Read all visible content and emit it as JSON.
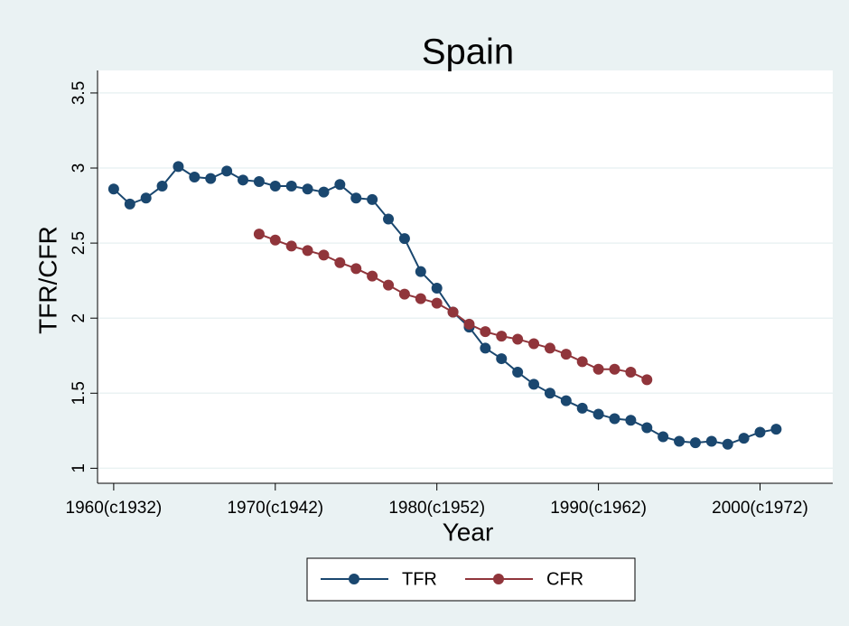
{
  "chart_data": {
    "type": "line",
    "title": "Spain",
    "x_label": "Year",
    "y_label": "TFR/CFR",
    "x": [
      1960,
      1961,
      1962,
      1963,
      1964,
      1965,
      1966,
      1967,
      1968,
      1969,
      1970,
      1971,
      1972,
      1973,
      1974,
      1975,
      1976,
      1977,
      1978,
      1979,
      1980,
      1981,
      1982,
      1983,
      1984,
      1985,
      1986,
      1987,
      1988,
      1989,
      1990,
      1991,
      1992,
      1993,
      1994,
      1995,
      1996,
      1997,
      1998,
      1999,
      2000,
      2001
    ],
    "series": [
      {
        "name": "TFR",
        "color": "#1a476f",
        "values": [
          2.86,
          2.76,
          2.8,
          2.88,
          3.01,
          2.94,
          2.93,
          2.98,
          2.92,
          2.91,
          2.88,
          2.88,
          2.86,
          2.84,
          2.89,
          2.8,
          2.79,
          2.66,
          2.53,
          2.31,
          2.2,
          2.04,
          1.94,
          1.8,
          1.73,
          1.64,
          1.56,
          1.5,
          1.45,
          1.4,
          1.36,
          1.33,
          1.32,
          1.27,
          1.21,
          1.18,
          1.17,
          1.18,
          1.16,
          1.2,
          1.24,
          1.26
        ]
      },
      {
        "name": "CFR",
        "color": "#90353b",
        "values": [
          null,
          null,
          null,
          null,
          null,
          null,
          null,
          null,
          null,
          2.56,
          2.52,
          2.48,
          2.45,
          2.42,
          2.37,
          2.33,
          2.28,
          2.22,
          2.16,
          2.13,
          2.1,
          2.04,
          1.96,
          1.91,
          1.88,
          1.86,
          1.83,
          1.8,
          1.76,
          1.71,
          1.66,
          1.66,
          1.64,
          1.59,
          null,
          null,
          null,
          null,
          null,
          null,
          null,
          null
        ]
      }
    ],
    "xlim": [
      1959,
      2004.5
    ],
    "xticks": [
      {
        "value": 1960,
        "label": "1960(c1932)"
      },
      {
        "value": 1970,
        "label": "1970(c1942)"
      },
      {
        "value": 1980,
        "label": "1980(c1952)"
      },
      {
        "value": 1990,
        "label": "1990(c1962)"
      },
      {
        "value": 2000,
        "label": "2000(c1972)"
      }
    ],
    "ylim": [
      0.9,
      3.65
    ],
    "yticks": [
      1,
      1.5,
      2,
      2.5,
      3,
      3.5
    ],
    "grid": true,
    "legend": "bottom"
  }
}
